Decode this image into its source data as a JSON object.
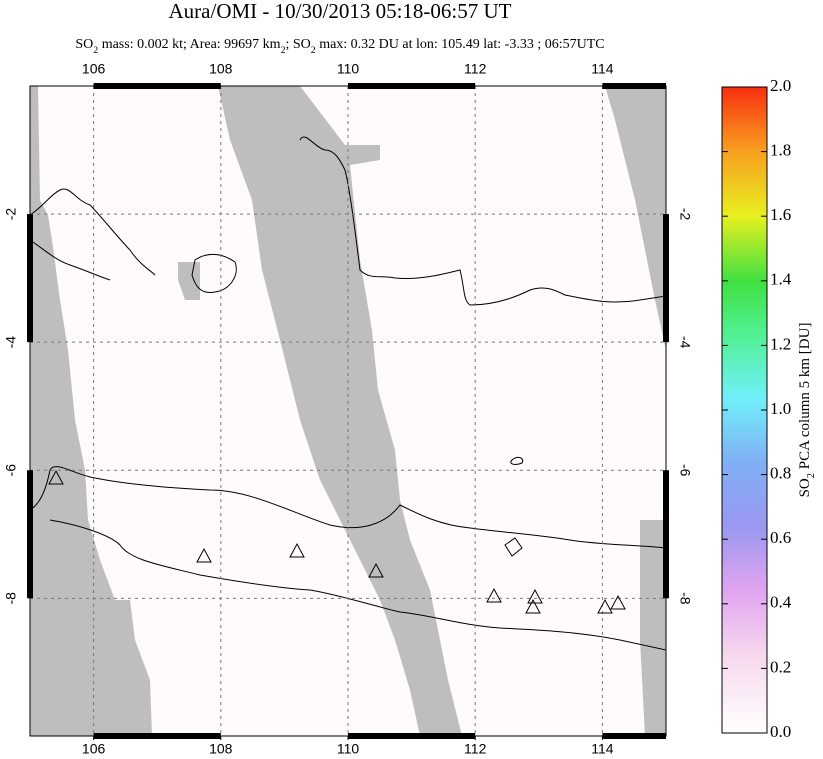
{
  "chart_data": {
    "type": "map",
    "title": "Aura/OMI - 10/30/2013 05:18-06:57 UT",
    "subtitle_parts": [
      "SO",
      "2",
      " mass: 0.002 kt; Area: 99697 km",
      "2",
      "; SO",
      "2",
      " max: 0.32 DU at lon: 105.49 lat: -3.33 ; 06:57UTC"
    ],
    "xlim": [
      105,
      115
    ],
    "xticks": [
      106,
      108,
      110,
      112,
      114
    ],
    "ylim": [
      -10.15,
      0
    ],
    "yticks": [
      -2,
      -4,
      -6,
      -8
    ],
    "grid": true,
    "colorbar": {
      "label_parts": [
        "SO",
        "2",
        " PCA column 5 km [DU]"
      ],
      "lim": [
        0,
        2
      ],
      "ticks": [
        {
          "value": 0,
          "label": "0.0"
        },
        0.2,
        0.4,
        0.6,
        0.8,
        {
          "value": 1,
          "label": "1.0"
        },
        1.2,
        1.4,
        1.6,
        1.8,
        {
          "value": 2,
          "label": "2.0"
        }
      ]
    }
  }
}
